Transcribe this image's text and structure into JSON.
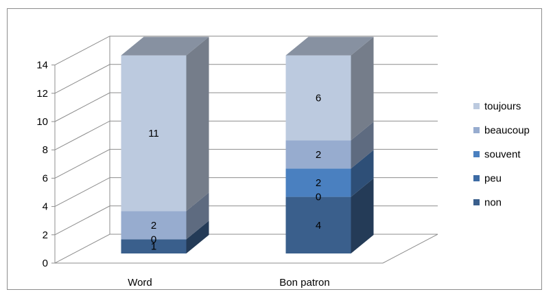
{
  "chart_data": {
    "type": "bar",
    "stacked": true,
    "three_d": true,
    "title": "",
    "xlabel": "",
    "ylabel": "",
    "categories": [
      "Word",
      "Bon patron"
    ],
    "ylim": [
      0,
      14
    ],
    "yticks": [
      "0",
      "2",
      "4",
      "6",
      "8",
      "10",
      "12",
      "14"
    ],
    "grid": true,
    "legend_position": "right",
    "series": [
      {
        "name": "non",
        "values": [
          1,
          4
        ],
        "labels": [
          "1",
          "4"
        ],
        "color": "#3a5f8c"
      },
      {
        "name": "peu",
        "values": [
          0,
          0
        ],
        "labels": [
          "0",
          "0"
        ],
        "color": "#3d6ba4"
      },
      {
        "name": "souvent",
        "values": [
          0,
          2
        ],
        "labels": [
          "",
          "2"
        ],
        "color": "#4a80c0"
      },
      {
        "name": "beaucoup",
        "values": [
          2,
          2
        ],
        "labels": [
          "2",
          "2"
        ],
        "color": "#97accf"
      },
      {
        "name": "toujours",
        "values": [
          11,
          6
        ],
        "labels": [
          "11",
          "6"
        ],
        "color": "#bccadf"
      }
    ]
  }
}
